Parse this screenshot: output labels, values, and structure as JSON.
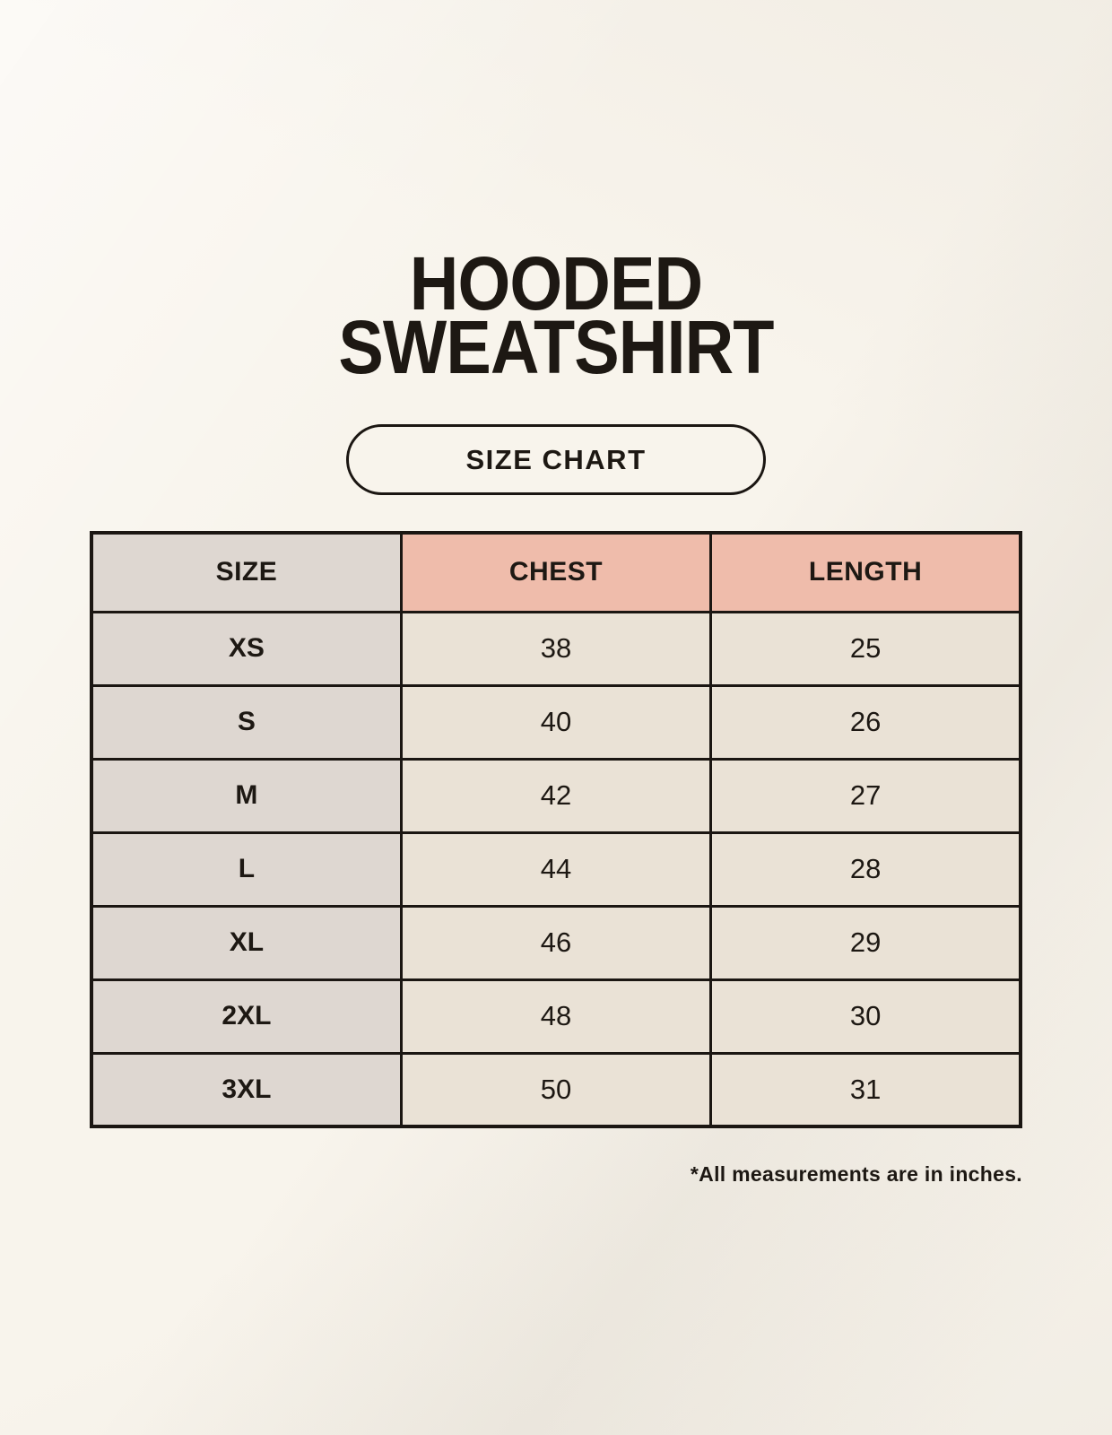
{
  "title": {
    "line1": "HOODED",
    "line2": "SWEATSHIRT"
  },
  "badge": {
    "label": "SIZE CHART"
  },
  "table": {
    "columns": [
      "SIZE",
      "CHEST",
      "LENGTH"
    ],
    "rows": [
      {
        "size": "XS",
        "chest": "38",
        "length": "25"
      },
      {
        "size": "S",
        "chest": "40",
        "length": "26"
      },
      {
        "size": "M",
        "chest": "42",
        "length": "27"
      },
      {
        "size": "L",
        "chest": "44",
        "length": "28"
      },
      {
        "size": "XL",
        "chest": "46",
        "length": "29"
      },
      {
        "size": "2XL",
        "chest": "48",
        "length": "30"
      },
      {
        "size": "3XL",
        "chest": "50",
        "length": "31"
      }
    ]
  },
  "footnote": "*All measurements are in inches.",
  "colors": {
    "background": "#f8f4ec",
    "header_accent": "#efbcab",
    "size_column": "#ded7d1",
    "value_cell": "#eae2d6",
    "border": "#1b1612",
    "text": "#1d1813"
  },
  "chart_data": {
    "type": "table",
    "title": "HOODED SWEATSHIRT",
    "subtitle": "SIZE CHART",
    "columns": [
      "SIZE",
      "CHEST",
      "LENGTH"
    ],
    "rows": [
      [
        "XS",
        38,
        25
      ],
      [
        "S",
        40,
        26
      ],
      [
        "M",
        42,
        27
      ],
      [
        "L",
        44,
        28
      ],
      [
        "XL",
        46,
        29
      ],
      [
        "2XL",
        48,
        30
      ],
      [
        "3XL",
        50,
        31
      ]
    ],
    "units": "inches",
    "note": "*All measurements are in inches."
  }
}
